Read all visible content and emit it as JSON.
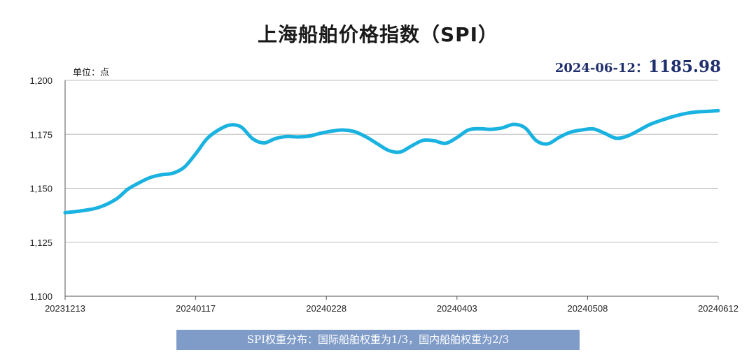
{
  "chart_data": {
    "type": "line",
    "title": "上海船舶价格指数（SPI）",
    "unit_label": "单位：点",
    "latest": {
      "date_label": "2024-06-12：",
      "value_label": "1185.98"
    },
    "ylim": [
      1100,
      1200
    ],
    "yticks": [
      1100,
      1125,
      1150,
      1175,
      1200
    ],
    "ytick_labels": [
      "1,100",
      "1,125",
      "1,150",
      "1,175",
      "1,200"
    ],
    "xticks": [
      "20231213",
      "20240117",
      "20240228",
      "20240403",
      "20240508",
      "20240612"
    ],
    "grid": true,
    "line_color": "#1ab2e0",
    "series": [
      {
        "name": "",
        "points": [
          [
            0,
            1138.7
          ],
          [
            3,
            1139.6
          ],
          [
            6,
            1141.2
          ],
          [
            9,
            1145.0
          ],
          [
            11,
            1149.5
          ],
          [
            13,
            1152.5
          ],
          [
            15,
            1155.0
          ],
          [
            17,
            1156.3
          ],
          [
            19,
            1157.0
          ],
          [
            21,
            1159.8
          ],
          [
            23,
            1166.0
          ],
          [
            25,
            1173.0
          ],
          [
            27,
            1177.0
          ],
          [
            29,
            1179.3
          ],
          [
            31,
            1178.4
          ],
          [
            33,
            1173.0
          ],
          [
            35,
            1171.0
          ],
          [
            37,
            1173.0
          ],
          [
            39,
            1174.0
          ],
          [
            41,
            1173.8
          ],
          [
            43,
            1174.2
          ],
          [
            45,
            1175.5
          ],
          [
            47,
            1176.5
          ],
          [
            49,
            1177.0
          ],
          [
            51,
            1176.2
          ],
          [
            53,
            1173.8
          ],
          [
            55,
            1170.6
          ],
          [
            57,
            1167.5
          ],
          [
            59,
            1166.8
          ],
          [
            61,
            1169.6
          ],
          [
            63,
            1172.2
          ],
          [
            65,
            1172.0
          ],
          [
            67,
            1170.8
          ],
          [
            69,
            1173.5
          ],
          [
            71,
            1177.0
          ],
          [
            73,
            1177.6
          ],
          [
            75,
            1177.3
          ],
          [
            77,
            1178.0
          ],
          [
            79,
            1179.6
          ],
          [
            81,
            1178.0
          ],
          [
            83,
            1172.0
          ],
          [
            85,
            1170.6
          ],
          [
            87,
            1173.6
          ],
          [
            89,
            1176.0
          ],
          [
            91,
            1177.0
          ],
          [
            93,
            1177.5
          ],
          [
            95,
            1175.5
          ],
          [
            97,
            1173.2
          ],
          [
            99,
            1174.2
          ],
          [
            101,
            1176.8
          ],
          [
            103,
            1179.6
          ],
          [
            105,
            1181.5
          ],
          [
            107,
            1183.2
          ],
          [
            109,
            1184.5
          ],
          [
            111,
            1185.3
          ],
          [
            113,
            1185.6
          ],
          [
            115,
            1185.98
          ]
        ]
      }
    ],
    "x_index_of_ticks": [
      0,
      23,
      46,
      69,
      92,
      115
    ]
  },
  "footnote": "SPI权重分布：国际船舶权重为1/3，国内船舶权重为2/3"
}
